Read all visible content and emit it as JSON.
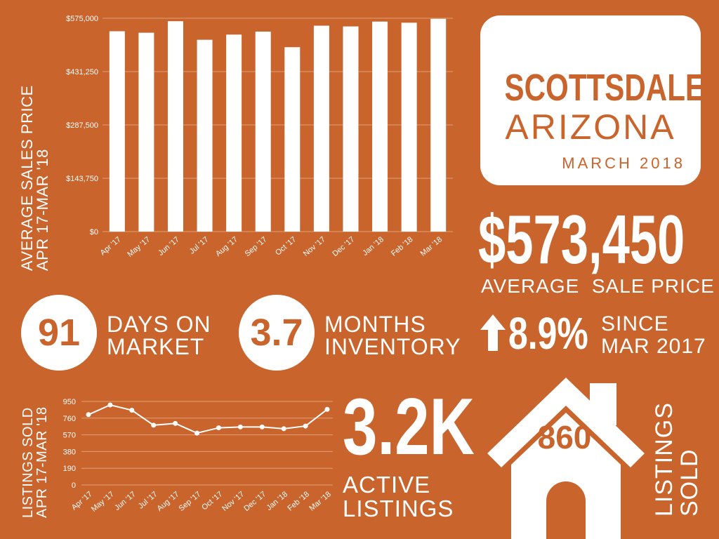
{
  "header": {
    "city": "SCOTTSDALE",
    "state": "ARIZONA",
    "date": "MARCH 2018"
  },
  "kpis": {
    "avg_price": "$573,450",
    "avg_price_label": "AVERAGE  SALE PRICE",
    "days_on_market": "91",
    "days_on_market_label_1": "DAYS ON",
    "days_on_market_label_2": "MARKET",
    "months_inventory": "3.7",
    "months_inventory_label_1": "MONTHS",
    "months_inventory_label_2": "INVENTORY",
    "change_pct": "8.9%",
    "change_label_1": "SINCE",
    "change_label_2": "MAR 2017",
    "active_listings": "3.2K",
    "active_listings_label_1": "ACTIVE",
    "active_listings_label_2": "LISTINGS",
    "listings_sold": "860",
    "listings_sold_label_1": "LISTINGS",
    "listings_sold_label_2": "SOLD"
  },
  "icons": {
    "change": "up-arrow-icon",
    "house": "house-icon"
  },
  "colors": {
    "background": "#c8642c",
    "foreground": "#ffffff"
  },
  "chart_data": [
    {
      "type": "bar",
      "ylabel_1": "AVERAGE SALES PRICE",
      "ylabel_2": "APR 17-MAR '18",
      "categories": [
        "Apr '17",
        "May '17",
        "Jun '17",
        "Jul '17",
        "Aug '17",
        "Sep '17",
        "Oct '17",
        "Nov '17",
        "Dec '17",
        "Jan '18",
        "Feb '18",
        "Mar '18"
      ],
      "values": [
        540000,
        536000,
        567000,
        517000,
        531000,
        539000,
        497000,
        555000,
        553000,
        566000,
        563000,
        573450
      ],
      "yticks": [
        "$0",
        "$143,750",
        "$287,500",
        "$431,250",
        "$575,000"
      ],
      "ylim": [
        0,
        575000
      ],
      "grid": true
    },
    {
      "type": "line",
      "ylabel_1": "LISTINGS SOLD",
      "ylabel_2": "APR 17-MAR '18",
      "categories": [
        "Apr '17",
        "May '17",
        "Jun '17",
        "Jul '17",
        "Aug '17",
        "Sep '17",
        "Oct '17",
        "Nov '17",
        "Dec '17",
        "Jan '18",
        "Feb '18",
        "Mar '18"
      ],
      "values": [
        800,
        910,
        850,
        680,
        700,
        590,
        650,
        660,
        660,
        640,
        670,
        860
      ],
      "yticks": [
        "0",
        "190",
        "380",
        "570",
        "760",
        "950"
      ],
      "ylim": [
        0,
        950
      ],
      "grid": true
    }
  ]
}
